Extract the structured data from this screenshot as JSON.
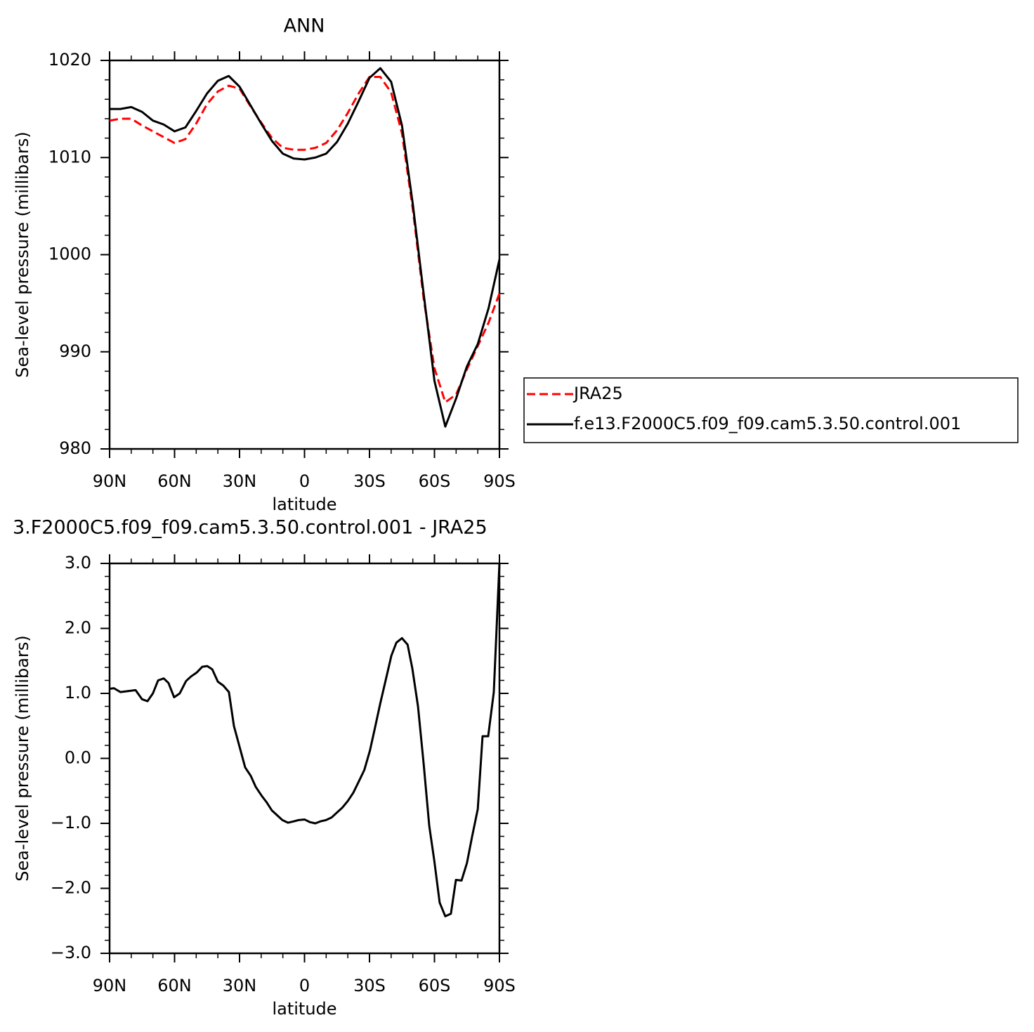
{
  "chart_data": [
    {
      "type": "line",
      "title": "ANN",
      "xlabel": "latitude",
      "ylabel": "Sea-level pressure (millibars)",
      "x": [
        90,
        85,
        80,
        75,
        70,
        65,
        60,
        55,
        50,
        45,
        40,
        35,
        30,
        25,
        20,
        15,
        10,
        5,
        0,
        -5,
        -10,
        -15,
        -20,
        -25,
        -30,
        -35,
        -40,
        -45,
        -50,
        -55,
        -60,
        -65,
        -70,
        -75,
        -80,
        -85,
        -90
      ],
      "series": [
        {
          "name": "JRA25",
          "color": "#ff0000",
          "linestyle": "dashed",
          "values": [
            1013.8,
            1014.0,
            1014.0,
            1013.3,
            1012.7,
            1012.1,
            1011.5,
            1011.9,
            1013.5,
            1015.5,
            1016.8,
            1017.4,
            1017.1,
            1015.3,
            1013.6,
            1012.0,
            1011.0,
            1010.8,
            1010.8,
            1011.0,
            1011.5,
            1012.8,
            1014.6,
            1016.6,
            1018.3,
            1018.3,
            1016.7,
            1012.5,
            1004.7,
            995.5,
            988.3,
            984.8,
            985.6,
            988.2,
            990.6,
            993.0,
            996.0
          ]
        },
        {
          "name": "f.e13.F2000C5.f09_f09.cam5.3.50.control.001",
          "color": "#000000",
          "linestyle": "solid",
          "values": [
            1015.0,
            1015.0,
            1015.2,
            1014.7,
            1013.8,
            1013.4,
            1012.7,
            1013.1,
            1014.8,
            1016.6,
            1017.9,
            1018.4,
            1017.3,
            1015.4,
            1013.5,
            1011.7,
            1010.4,
            1009.9,
            1009.8,
            1010.0,
            1010.4,
            1011.6,
            1013.5,
            1015.8,
            1018.2,
            1019.2,
            1017.8,
            1013.3,
            1005.2,
            996.0,
            987.0,
            982.3,
            985.2,
            988.5,
            990.8,
            994.5,
            999.5
          ]
        }
      ],
      "xlim": [
        90,
        -90
      ],
      "xticks": [
        {
          "value": 90,
          "label": "90N"
        },
        {
          "value": 60,
          "label": "60N"
        },
        {
          "value": 30,
          "label": "30N"
        },
        0,
        {
          "value": -30,
          "label": "30S"
        },
        {
          "value": -60,
          "label": "60S"
        },
        {
          "value": -90,
          "label": "90S"
        }
      ],
      "ylim": [
        980,
        1020
      ],
      "yticks": [
        980,
        990,
        1000,
        1010,
        1020
      ],
      "legend": "right"
    },
    {
      "type": "line",
      "title": "3.F2000C5.f09_f09.cam5.3.50.control.001 - JRA25",
      "xlabel": "latitude",
      "ylabel": "Sea-level pressure (millibars)",
      "x": [
        90,
        88,
        85,
        78,
        75,
        72.5,
        70,
        67.6,
        65,
        62.8,
        60.2,
        57.6,
        54.7,
        52.4,
        49.8,
        47.2,
        44.9,
        42.6,
        40,
        37.5,
        34.9,
        32.6,
        30,
        27.4,
        24.8,
        22.5,
        19.9,
        17.4,
        15.1,
        12.5,
        10.2,
        7.6,
        5,
        2.8,
        0,
        -2.4,
        -5,
        -7.3,
        -9.9,
        -12.5,
        -15.1,
        -17.4,
        -19.9,
        -22.5,
        -25,
        -27.6,
        -30.2,
        -32.4,
        -35,
        -37.6,
        -40.1,
        -42.4,
        -45,
        -47.6,
        -49.8,
        -52.4,
        -55,
        -57.6,
        -59.9,
        -62.4,
        -65,
        -67.6,
        -69.9,
        -72.5,
        -75,
        -77.4,
        -80,
        -82.2,
        -84.8,
        -87.4,
        -90
      ],
      "series": [
        {
          "color": "#000000",
          "linestyle": "solid",
          "values": [
            1.07,
            1.08,
            1.02,
            1.05,
            0.91,
            0.88,
            1.0,
            1.2,
            1.23,
            1.16,
            0.94,
            1.0,
            1.19,
            1.26,
            1.32,
            1.41,
            1.42,
            1.37,
            1.18,
            1.12,
            1.02,
            0.5,
            0.18,
            -0.14,
            -0.27,
            -0.44,
            -0.57,
            -0.68,
            -0.8,
            -0.88,
            -0.95,
            -0.99,
            -0.97,
            -0.95,
            -0.94,
            -0.98,
            -1.0,
            -0.97,
            -0.95,
            -0.91,
            -0.83,
            -0.76,
            -0.66,
            -0.53,
            -0.36,
            -0.18,
            0.12,
            0.45,
            0.85,
            1.22,
            1.58,
            1.78,
            1.85,
            1.75,
            1.38,
            0.8,
            -0.08,
            -1.04,
            -1.57,
            -2.22,
            -2.43,
            -2.39,
            -1.87,
            -1.88,
            -1.61,
            -1.2,
            -0.78,
            0.34,
            0.34,
            1.02,
            3.0
          ]
        }
      ],
      "xlim": [
        90,
        -90
      ],
      "xticks": [
        {
          "value": 90,
          "label": "90N"
        },
        {
          "value": 60,
          "label": "60N"
        },
        {
          "value": 30,
          "label": "30N"
        },
        0,
        {
          "value": -30,
          "label": "30S"
        },
        {
          "value": -60,
          "label": "60S"
        },
        {
          "value": -90,
          "label": "90S"
        }
      ],
      "ylim": [
        -3,
        3
      ],
      "yticks": [
        {
          "value": -3,
          "label": "−3.0"
        },
        {
          "value": -2,
          "label": "−2.0"
        },
        {
          "value": -1,
          "label": "−1.0"
        },
        {
          "value": 0,
          "label": "0.0"
        },
        {
          "value": 1,
          "label": "1.0"
        },
        {
          "value": 2,
          "label": "2.0"
        },
        {
          "value": 3,
          "label": "3.0"
        }
      ]
    }
  ]
}
